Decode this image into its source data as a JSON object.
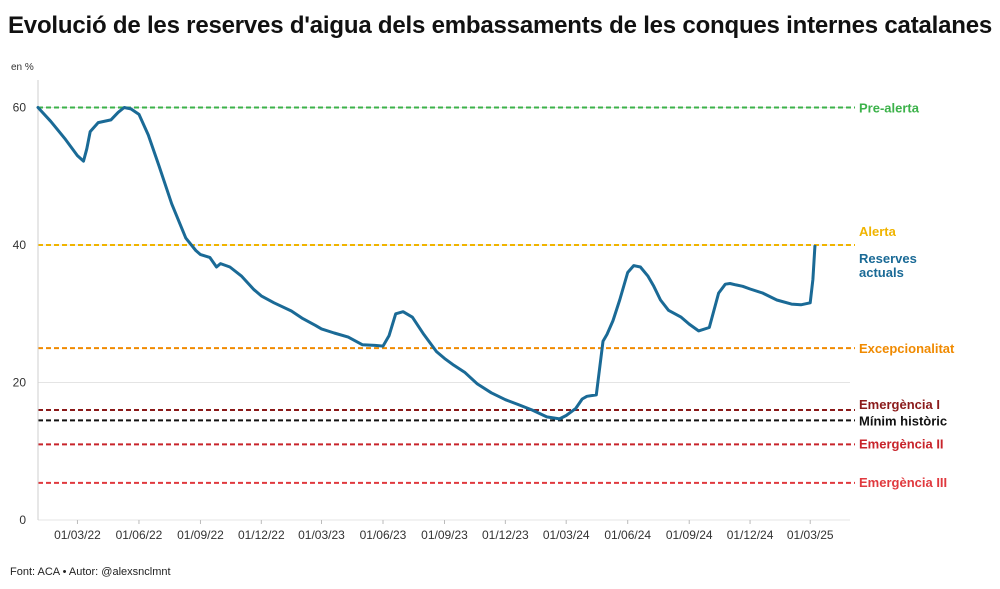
{
  "title": "Evolució de les reserves d'aigua dels embassaments de les conques internes catalanes",
  "footer": "Font: ACA • Autor: @alexsnclmnt",
  "chart_data": {
    "type": "line",
    "title": "Evolució de les reserves d'aigua dels embassaments de les conques internes catalanes",
    "ylabel": "en %",
    "xlabel": "",
    "ylim": [
      0,
      64
    ],
    "y_ticks": [
      0,
      20,
      40,
      60
    ],
    "x_ticks": [
      "01/03/22",
      "01/06/22",
      "01/09/22",
      "01/12/22",
      "01/03/23",
      "01/06/23",
      "01/09/23",
      "01/12/23",
      "01/03/24",
      "01/06/24",
      "01/09/24",
      "01/12/24",
      "01/03/25"
    ],
    "grid": "horizontal",
    "series": [
      {
        "name": "Reserves actuals",
        "color": "#1a6a96",
        "x": [
          "2022-01-01",
          "2022-01-20",
          "2022-02-10",
          "2022-03-01",
          "2022-03-10",
          "2022-03-15",
          "2022-03-20",
          "2022-04-01",
          "2022-04-20",
          "2022-05-01",
          "2022-05-10",
          "2022-05-20",
          "2022-06-01",
          "2022-06-15",
          "2022-07-01",
          "2022-07-20",
          "2022-08-10",
          "2022-08-25",
          "2022-09-01",
          "2022-09-15",
          "2022-09-25",
          "2022-10-01",
          "2022-10-15",
          "2022-11-01",
          "2022-11-20",
          "2022-12-01",
          "2022-12-20",
          "2023-01-15",
          "2023-02-01",
          "2023-02-20",
          "2023-03-01",
          "2023-03-20",
          "2023-04-10",
          "2023-05-01",
          "2023-05-20",
          "2023-06-01",
          "2023-06-10",
          "2023-06-20",
          "2023-07-01",
          "2023-07-15",
          "2023-08-01",
          "2023-08-20",
          "2023-09-01",
          "2023-09-15",
          "2023-10-01",
          "2023-10-20",
          "2023-11-10",
          "2023-12-01",
          "2023-12-20",
          "2024-01-10",
          "2024-02-01",
          "2024-02-20",
          "2024-03-01",
          "2024-03-15",
          "2024-03-25",
          "2024-04-01",
          "2024-04-15",
          "2024-04-25",
          "2024-05-01",
          "2024-05-10",
          "2024-05-20",
          "2024-06-01",
          "2024-06-10",
          "2024-06-20",
          "2024-07-01",
          "2024-07-10",
          "2024-07-20",
          "2024-08-01",
          "2024-08-20",
          "2024-09-01",
          "2024-09-15",
          "2024-10-01",
          "2024-10-15",
          "2024-10-25",
          "2024-11-01",
          "2024-11-10",
          "2024-11-20",
          "2024-12-01",
          "2024-12-20",
          "2025-01-10",
          "2025-02-01",
          "2025-02-15",
          "2025-03-01",
          "2025-03-05",
          "2025-03-08"
        ],
        "values": [
          60.0,
          58.0,
          55.5,
          53.0,
          52.2,
          54.0,
          56.5,
          57.8,
          58.2,
          59.3,
          60.0,
          59.8,
          59.0,
          56.0,
          51.5,
          46.0,
          41.0,
          39.2,
          38.6,
          38.2,
          36.8,
          37.3,
          36.8,
          35.5,
          33.5,
          32.6,
          31.6,
          30.4,
          29.3,
          28.3,
          27.8,
          27.2,
          26.6,
          25.5,
          25.4,
          25.3,
          26.8,
          30.0,
          30.3,
          29.5,
          27.0,
          24.5,
          23.5,
          22.5,
          21.5,
          19.8,
          18.5,
          17.5,
          16.8,
          16.0,
          15.0,
          14.7,
          15.2,
          16.2,
          17.6,
          18.0,
          18.2,
          26.0,
          27.0,
          29.0,
          32.0,
          36.0,
          37.0,
          36.8,
          35.5,
          34.0,
          32.0,
          30.5,
          29.5,
          28.5,
          27.5,
          28.0,
          33.0,
          34.3,
          34.4,
          34.2,
          34.0,
          33.6,
          33.0,
          32.0,
          31.4,
          31.3,
          31.6,
          35.0,
          39.8
        ]
      }
    ],
    "reference_lines": [
      {
        "label": "Pre-alerta",
        "value": 60,
        "color": "#3cb24a"
      },
      {
        "label": "Alerta",
        "value": 40,
        "color": "#f0b400"
      },
      {
        "label": "Excepcionalitat",
        "value": 25,
        "color": "#f08a00"
      },
      {
        "label": "Emergència I",
        "value": 16,
        "color": "#8b1a1a"
      },
      {
        "label": "Mínim històric",
        "value": 14.5,
        "color": "#111111"
      },
      {
        "label": "Emergència II",
        "value": 11,
        "color": "#c8242b"
      },
      {
        "label": "Emergència III",
        "value": 5.4,
        "color": "#e0393e"
      }
    ]
  }
}
